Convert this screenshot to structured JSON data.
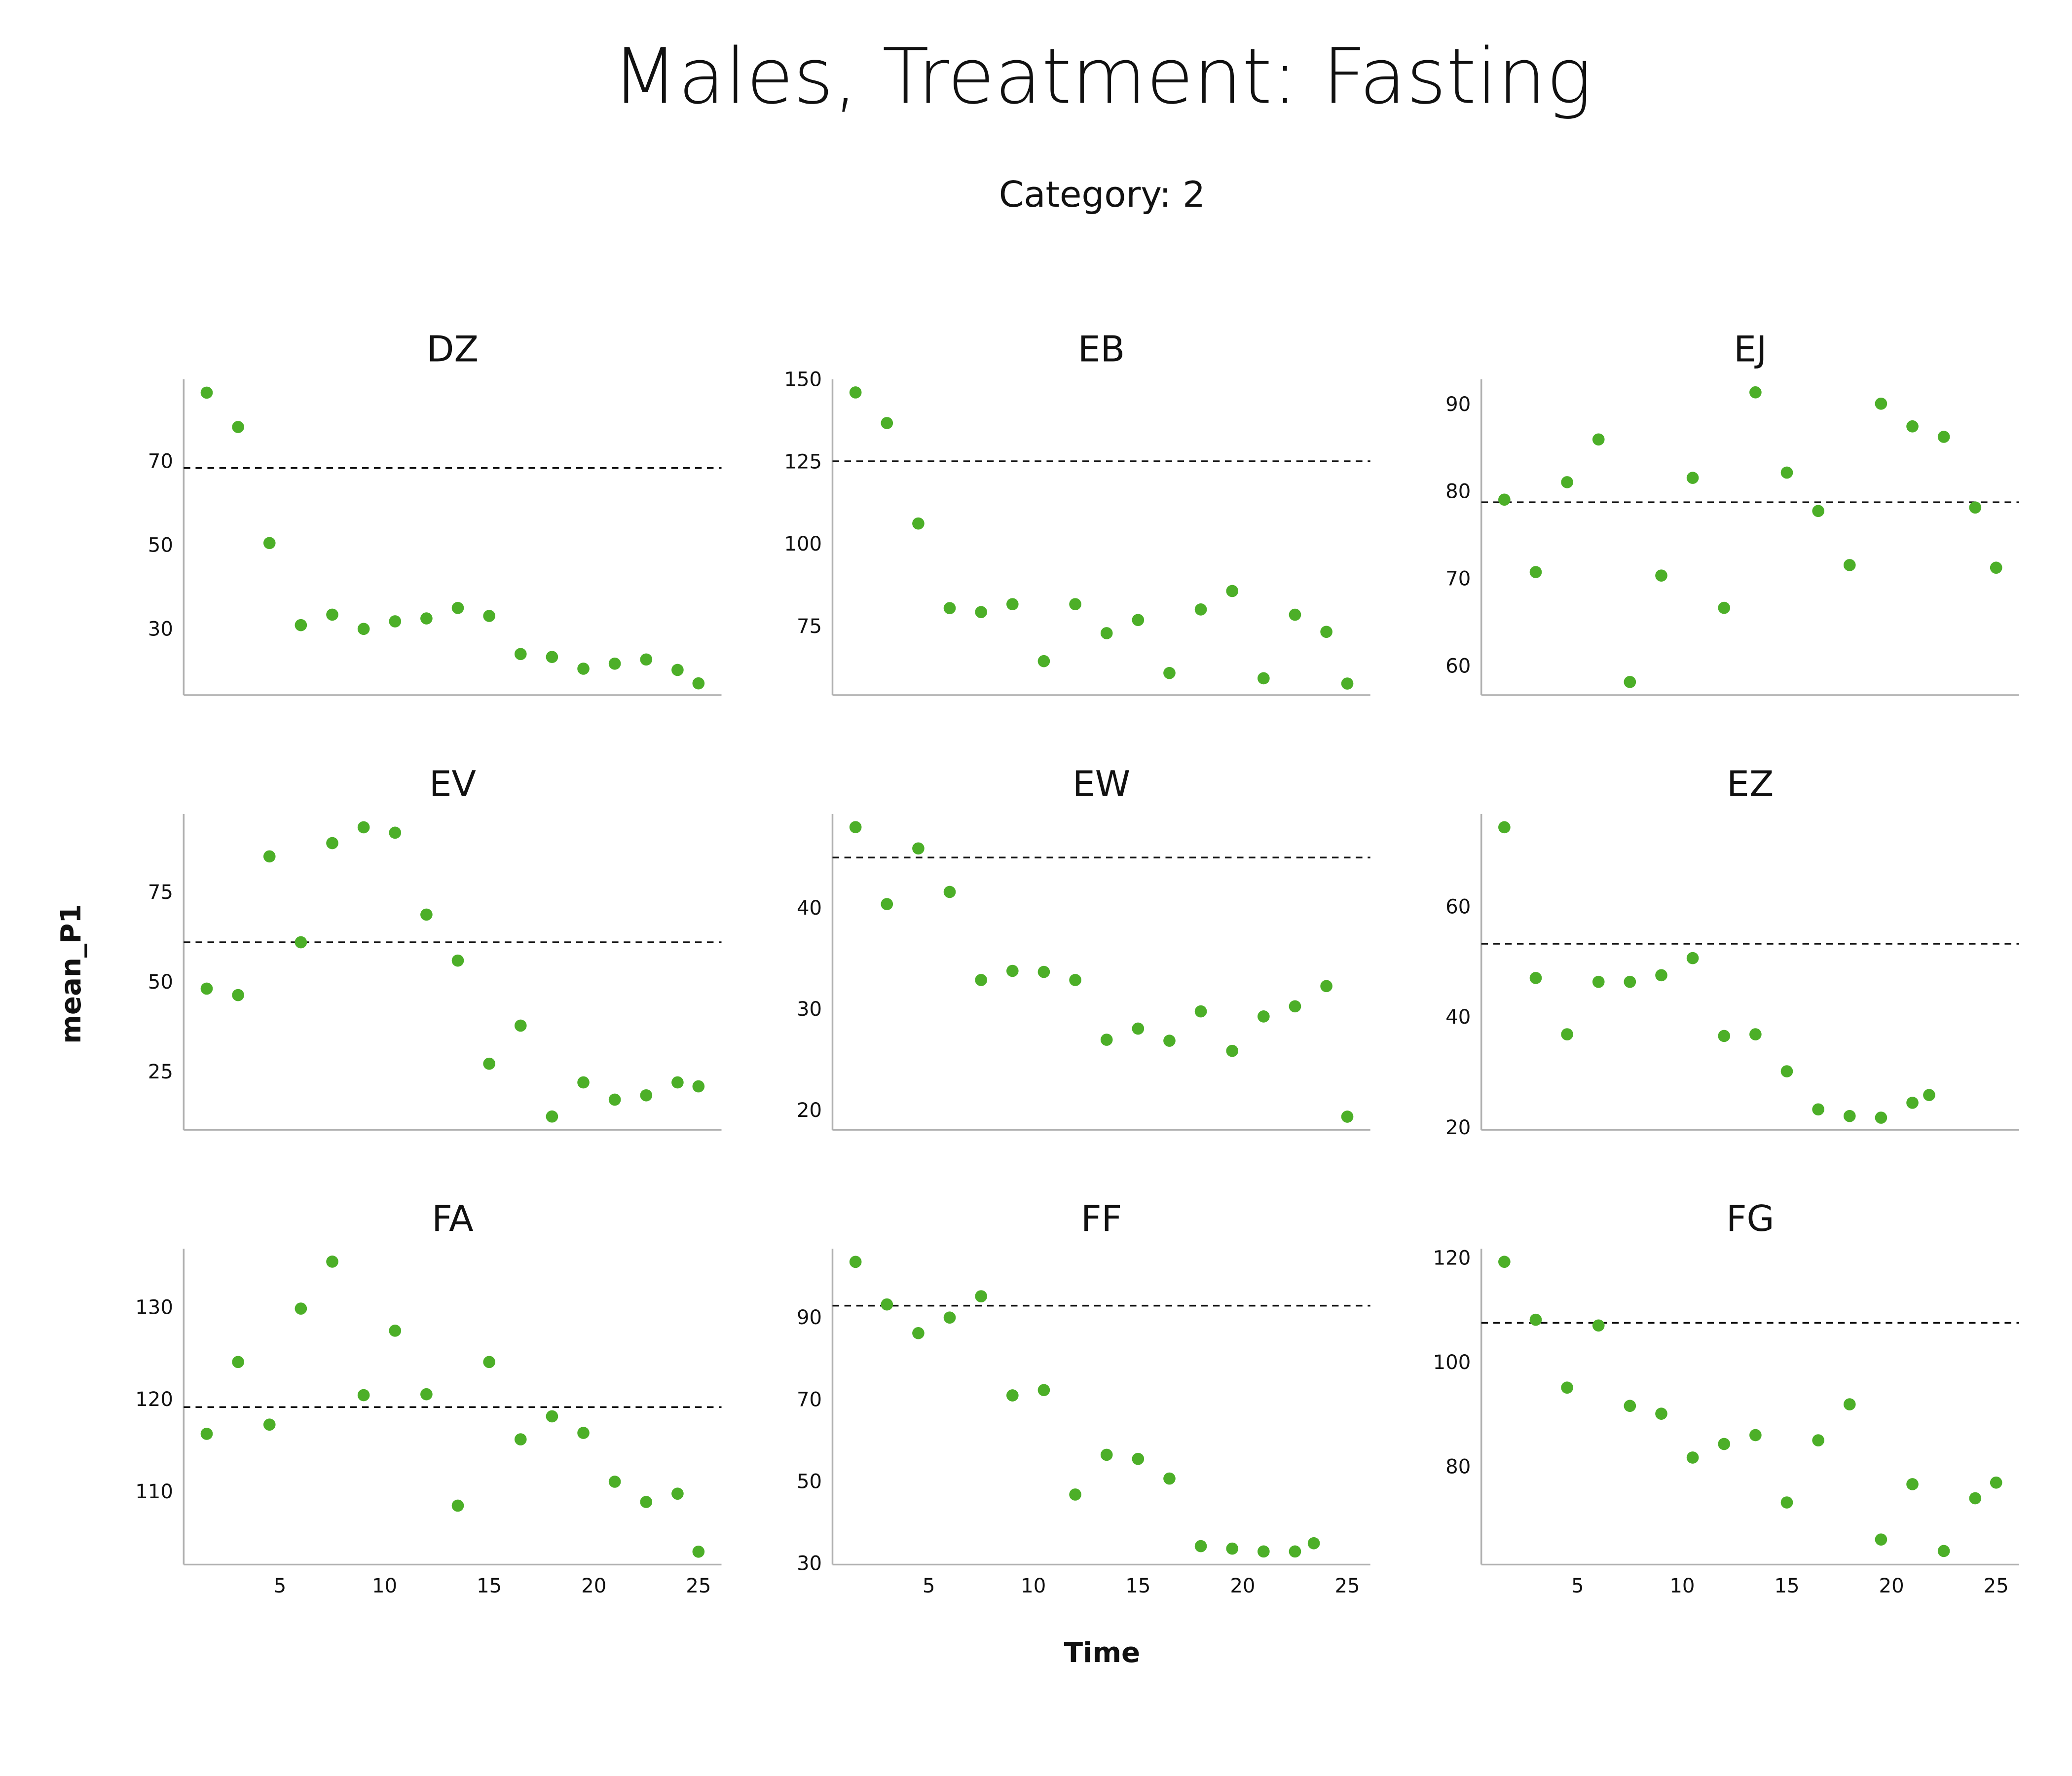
{
  "title": "Males, Treatment: Fasting",
  "subtitle": "Category: 2",
  "x_label": "Time",
  "y_label": "mean_P1",
  "chart_data": [
    {
      "type": "scatter",
      "title": "DZ",
      "color": "#4caf28",
      "xlim": [
        0.4,
        26.1
      ],
      "ylim": [
        14.5,
        89.9
      ],
      "yticks": [
        30,
        50,
        70
      ],
      "reference_line": 68.7,
      "x": [
        1.5,
        3,
        4.5,
        6,
        7.5,
        9,
        10.5,
        12,
        13.5,
        15,
        16.5,
        18,
        19.5,
        21,
        22.5,
        24,
        25
      ],
      "values": [
        86.7,
        78.5,
        50.8,
        31.2,
        33.7,
        30.3,
        32.1,
        32.8,
        35.3,
        33.4,
        24.3,
        23.6,
        20.8,
        22.0,
        23.0,
        20.5,
        17.3
      ]
    },
    {
      "type": "scatter",
      "title": "EB",
      "color": "#4caf28",
      "xlim": [
        0.4,
        26.1
      ],
      "ylim": [
        54.5,
        150.4
      ],
      "yticks": [
        75,
        100,
        125,
        150
      ],
      "reference_line": 125.5,
      "x": [
        1.5,
        3,
        4.5,
        6,
        7.5,
        9,
        10.5,
        12,
        13.5,
        15,
        16.5,
        18,
        19.5,
        21,
        22.5,
        24,
        25
      ],
      "values": [
        146.4,
        137.1,
        106.6,
        80.9,
        79.7,
        82.1,
        64.8,
        82.1,
        73.3,
        77.3,
        61.2,
        80.5,
        86.1,
        59.6,
        78.9,
        73.7,
        58.0
      ]
    },
    {
      "type": "scatter",
      "title": "EJ",
      "color": "#4caf28",
      "xlim": [
        0.4,
        26.1
      ],
      "ylim": [
        56.8,
        93.0
      ],
      "yticks": [
        60,
        70,
        80,
        90
      ],
      "reference_line": 78.9,
      "x": [
        1.5,
        3,
        4.5,
        6,
        7.5,
        9,
        10.5,
        12,
        13.5,
        15,
        16.5,
        18,
        19.5,
        21,
        22.5,
        24,
        25
      ],
      "values": [
        79.2,
        70.9,
        81.2,
        86.1,
        58.3,
        70.5,
        81.7,
        66.8,
        91.5,
        82.3,
        77.9,
        71.7,
        90.2,
        87.6,
        86.4,
        78.3,
        71.4
      ]
    },
    {
      "type": "scatter",
      "title": "EV",
      "color": "#4caf28",
      "xlim": [
        0.4,
        26.1
      ],
      "ylim": [
        9.2,
        97.1
      ],
      "yticks": [
        25,
        50,
        75
      ],
      "reference_line": 61.4,
      "x": [
        1.5,
        3,
        4.5,
        6,
        7.5,
        9,
        10.5,
        12,
        13.5,
        15,
        16.5,
        18,
        19.5,
        21,
        22.5,
        24,
        25
      ],
      "values": [
        48.5,
        46.7,
        85.3,
        61.4,
        89.0,
        93.4,
        91.9,
        69.1,
        56.3,
        27.6,
        38.2,
        12.9,
        22.4,
        17.6,
        18.8,
        22.4,
        21.3
      ]
    },
    {
      "type": "scatter",
      "title": "EW",
      "color": "#4caf28",
      "xlim": [
        0.4,
        26.1
      ],
      "ylim": [
        18.2,
        49.4
      ],
      "yticks": [
        20,
        30,
        40
      ],
      "reference_line": 45.1,
      "x": [
        1.5,
        3,
        4.5,
        6,
        7.5,
        9,
        10.5,
        12,
        13.5,
        15,
        16.5,
        18,
        19.5,
        21,
        22.5,
        24,
        25
      ],
      "values": [
        48.1,
        40.5,
        46.0,
        41.7,
        33.0,
        33.9,
        33.8,
        33.0,
        27.1,
        28.2,
        27.0,
        29.9,
        26.0,
        29.4,
        30.4,
        32.4,
        19.5
      ]
    },
    {
      "type": "scatter",
      "title": "EZ",
      "color": "#4caf28",
      "xlim": [
        0.4,
        26.1
      ],
      "ylim": [
        19.8,
        77.0
      ],
      "yticks": [
        20,
        40,
        60
      ],
      "reference_line": 53.5,
      "x": [
        1.5,
        3,
        4.5,
        6,
        7.5,
        9,
        10.5,
        12,
        13.5,
        15,
        16.5,
        18,
        19.5,
        21,
        21.8
      ],
      "values": [
        74.6,
        47.3,
        37.1,
        46.6,
        46.6,
        47.8,
        50.9,
        36.8,
        37.1,
        30.4,
        23.5,
        22.3,
        22.0,
        24.7,
        26.1
      ]
    },
    {
      "type": "scatter",
      "title": "FA",
      "color": "#4caf28",
      "xlim": [
        0.4,
        26.1
      ],
      "ylim": [
        102.2,
        136.5
      ],
      "yticks": [
        110,
        120,
        130
      ],
      "xticks": [
        5,
        10,
        15,
        20,
        25
      ],
      "reference_line": 119.3,
      "x": [
        1.5,
        3,
        4.5,
        6,
        7.5,
        9,
        10.5,
        12,
        13.5,
        15,
        16.5,
        18,
        19.5,
        21,
        22.5,
        24,
        25
      ],
      "values": [
        116.4,
        124.2,
        117.4,
        130.0,
        135.1,
        120.6,
        127.6,
        120.7,
        108.6,
        124.2,
        115.8,
        118.3,
        116.5,
        111.2,
        109.0,
        109.9,
        103.6
      ]
    },
    {
      "type": "scatter",
      "title": "FF",
      "color": "#4caf28",
      "xlim": [
        0.4,
        26.1
      ],
      "ylim": [
        30,
        107.1
      ],
      "yticks": [
        30,
        50,
        70,
        90
      ],
      "xticks": [
        5,
        10,
        15,
        20,
        25
      ],
      "reference_line": 93.2,
      "x": [
        1.5,
        3,
        4.5,
        6,
        7.5,
        9,
        10.5,
        12,
        13.5,
        15,
        16.5,
        18,
        19.5,
        21,
        22.5,
        23.4
      ],
      "values": [
        103.9,
        93.5,
        86.5,
        90.3,
        95.5,
        71.3,
        72.6,
        47.1,
        56.8,
        55.8,
        51.0,
        34.5,
        33.9,
        33.2,
        33.2,
        35.2
      ]
    },
    {
      "type": "scatter",
      "title": "FG",
      "color": "#4caf28",
      "xlim": [
        0.4,
        26.1
      ],
      "ylim": [
        61.5,
        122.0
      ],
      "yticks": [
        80,
        100,
        120
      ],
      "xticks": [
        5,
        10,
        15,
        20,
        25
      ],
      "reference_line": 107.8,
      "x": [
        1.5,
        3,
        4.5,
        6,
        7.5,
        9,
        10.5,
        12,
        13.5,
        15,
        16.5,
        18,
        19.5,
        21,
        22.5,
        24,
        25
      ],
      "values": [
        119.5,
        108.4,
        95.4,
        107.3,
        91.9,
        90.4,
        82.0,
        84.6,
        86.3,
        73.4,
        85.3,
        92.2,
        66.3,
        76.9,
        64.1,
        74.2,
        77.2
      ]
    }
  ]
}
